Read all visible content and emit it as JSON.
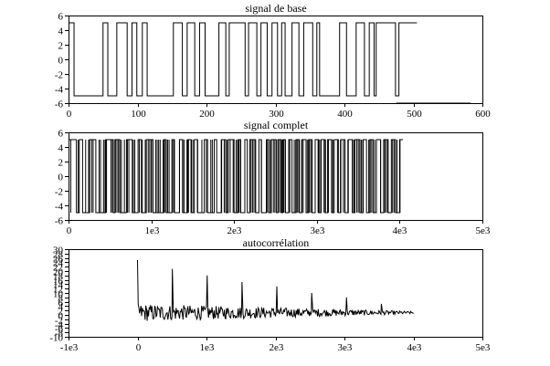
{
  "chart_data": [
    {
      "type": "line",
      "title": "signal de base",
      "xlim": [
        0,
        600
      ],
      "ylim": [
        -6,
        6
      ],
      "xticks": [
        0,
        100,
        200,
        300,
        400,
        500,
        600
      ],
      "xtick_labels": [
        "0",
        "100",
        "200",
        "300",
        "400",
        "500",
        "600"
      ],
      "yticks": [
        -6,
        -4,
        -2,
        0,
        2,
        4,
        6
      ],
      "ytick_labels": [
        "-6",
        "-4",
        "-2",
        "0",
        "2",
        "4",
        "6"
      ],
      "grid": false,
      "series": [
        {
          "x": [
            0,
            8,
            8,
            50,
            50,
            57,
            57,
            70,
            70,
            85,
            85,
            92,
            92,
            99,
            99,
            107,
            107,
            114,
            114,
            152,
            152,
            165,
            165,
            172,
            172,
            183,
            183,
            190,
            190,
            198,
            198,
            218,
            218,
            228,
            228,
            233,
            233,
            256,
            256,
            261,
            261,
            273,
            273,
            279,
            279,
            288,
            288,
            295,
            295,
            303,
            303,
            309,
            309,
            314,
            314,
            324,
            324,
            334,
            334,
            341,
            341,
            354,
            354,
            360,
            360,
            364,
            364,
            393,
            393,
            403,
            403,
            417,
            417,
            429,
            429,
            436,
            436,
            443,
            443,
            446,
            446,
            474,
            474,
            479,
            479,
            505,
            505
          ],
          "y": [
            5,
            5,
            -5,
            -5,
            5,
            5,
            -5,
            -5,
            5,
            5,
            -5,
            -5,
            5,
            5,
            -5,
            -5,
            5,
            5,
            -5,
            -5,
            5,
            5,
            -5,
            -5,
            5,
            5,
            -5,
            -5,
            5,
            5,
            -5,
            -5,
            5,
            5,
            -5,
            -5,
            5,
            5,
            -5,
            -5,
            5,
            5,
            -5,
            -5,
            5,
            5,
            -5,
            -5,
            5,
            5,
            -5,
            -5,
            5,
            5,
            -5,
            -5,
            5,
            5,
            -5,
            -5,
            5,
            5,
            -5,
            -5,
            5,
            5,
            -5,
            -5,
            5,
            5,
            -5,
            -5,
            5,
            5,
            -5,
            -5,
            5,
            5,
            -5,
            -5,
            5,
            5,
            -5,
            -5,
            5,
            5,
            5
          ]
        },
        {
          "x": [
            475,
            583
          ],
          "y": [
            -6,
            -6
          ]
        }
      ]
    },
    {
      "type": "line",
      "title": "signal complet",
      "xlim": [
        0,
        5000
      ],
      "ylim": [
        -6,
        6
      ],
      "xticks": [
        0,
        1000,
        2000,
        3000,
        4000,
        5000
      ],
      "xtick_labels": [
        "0",
        "1e3",
        "2e3",
        "3e3",
        "4e3",
        "5e3"
      ],
      "yticks": [
        -6,
        -4,
        -2,
        0,
        2,
        4,
        6
      ],
      "ytick_labels": [
        "-6",
        "-4",
        "-2",
        "0",
        "2",
        "4",
        "6"
      ],
      "grid": false,
      "series": [
        {
          "levels": [
            5,
            -5
          ],
          "x_start": 0,
          "x_end": 4040,
          "transitions": [
            95,
            130,
            170,
            255,
            330,
            450,
            540,
            560,
            620,
            700,
            770,
            840,
            880,
            940,
            1020,
            1150,
            1180,
            1250,
            1280,
            1340,
            1380,
            1440,
            1480,
            1520,
            1560,
            1640,
            1680,
            1760,
            1790,
            1850,
            1900,
            1930,
            2000,
            2050,
            2080,
            2130,
            2160,
            2190,
            2260,
            2300,
            2330,
            2390,
            2420,
            2450,
            2510,
            2530,
            2570,
            2590,
            2620,
            2660,
            2700,
            2750,
            2790,
            2820,
            2870,
            2900,
            2940,
            2980,
            3020,
            3050,
            3100,
            3130,
            3180,
            3210,
            3260,
            3290,
            3340,
            3380,
            3430,
            3460,
            3520,
            3560,
            3600,
            3640,
            3680,
            3720,
            3770,
            3810,
            3860,
            3900,
            3950,
            4000
          ]
        }
      ]
    },
    {
      "type": "line",
      "title": "autocorrélation",
      "xlim": [
        -1000,
        5000
      ],
      "ylim": [
        -10,
        30
      ],
      "xticks": [
        -1000,
        0,
        1000,
        2000,
        3000,
        4000,
        5000
      ],
      "xtick_labels": [
        "-1e3",
        "0",
        "1e3",
        "2e3",
        "3e3",
        "4e3",
        "5e3"
      ],
      "yticks": [
        -10,
        -8,
        -6,
        -4,
        -2,
        0,
        2,
        4,
        6,
        8,
        10,
        12,
        14,
        16,
        18,
        20,
        22,
        24,
        26,
        28,
        30
      ],
      "ytick_labels": [
        "-10",
        "-8",
        "-6",
        "-4",
        "-2",
        "0",
        "2",
        "4",
        "6",
        "8",
        "10",
        "12",
        "14",
        "16",
        "18",
        "20",
        "22",
        "24",
        "26",
        "28",
        "30"
      ],
      "grid": false,
      "series": [
        {
          "x_start": 0,
          "x_end": 4000,
          "baseline": 1,
          "noise_amplitude_start": 4,
          "noise_amplitude_end": 0.6,
          "peaks": [
            {
              "x": 0,
              "y": 25
            },
            {
              "x": 505,
              "y": 21
            },
            {
              "x": 1010,
              "y": 18
            },
            {
              "x": 1515,
              "y": 15
            },
            {
              "x": 2020,
              "y": 13
            },
            {
              "x": 2525,
              "y": 10
            },
            {
              "x": 3030,
              "y": 8
            },
            {
              "x": 3535,
              "y": 5
            }
          ]
        }
      ]
    }
  ]
}
